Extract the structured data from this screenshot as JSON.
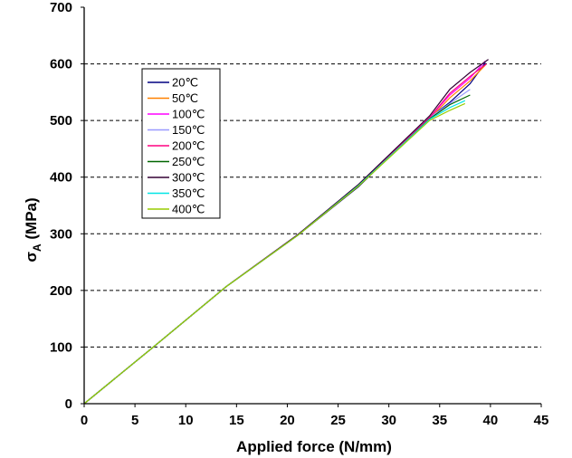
{
  "chart_data": {
    "type": "line",
    "xlabel": "Applied force (N/mm)",
    "ylabel_main": "σ",
    "ylabel_sub": "A",
    "ylabel_tail": " (MPa)",
    "xlim": [
      0,
      45
    ],
    "ylim": [
      0,
      700
    ],
    "xticks": [
      "0",
      "5",
      "10",
      "15",
      "20",
      "25",
      "30",
      "35",
      "40",
      "45"
    ],
    "yticks": [
      "0",
      "100",
      "200",
      "300",
      "400",
      "500",
      "600",
      "700"
    ],
    "grid": "horizontal dashed",
    "legend_position": "upper-left",
    "series": [
      {
        "name": "20℃",
        "color": "#000080",
        "x": [
          0,
          7,
          14,
          21,
          27,
          34,
          36,
          38,
          39.5
        ],
        "y": [
          0,
          103,
          207,
          297,
          383,
          505,
          532,
          565,
          602
        ]
      },
      {
        "name": "50℃",
        "color": "#ff8000",
        "x": [
          0,
          7,
          14,
          21,
          27,
          34,
          36,
          38,
          39.5
        ],
        "y": [
          0,
          103,
          207,
          298,
          385,
          503,
          540,
          570,
          598
        ]
      },
      {
        "name": "100℃",
        "color": "#ff00ff",
        "x": [
          0,
          7,
          14,
          21,
          27,
          34,
          36,
          38,
          39.5
        ],
        "y": [
          0,
          103,
          207,
          298,
          386,
          505,
          545,
          575,
          605
        ]
      },
      {
        "name": "150℃",
        "color": "#9999ff",
        "x": [
          0,
          7,
          14,
          21,
          27,
          34,
          36,
          38
        ],
        "y": [
          0,
          103,
          207,
          298,
          386,
          505,
          530,
          555
        ]
      },
      {
        "name": "200℃",
        "color": "#ff0080",
        "x": [
          0,
          7,
          14,
          21,
          27,
          34,
          36,
          38,
          39.6
        ],
        "y": [
          0,
          103,
          207,
          297,
          385,
          505,
          548,
          578,
          600
        ]
      },
      {
        "name": "250℃",
        "color": "#006600",
        "x": [
          0,
          7,
          14,
          21,
          27,
          34,
          36,
          38
        ],
        "y": [
          0,
          103,
          207,
          297,
          384,
          503,
          528,
          545
        ]
      },
      {
        "name": "300℃",
        "color": "#330033",
        "x": [
          0,
          7,
          14,
          21,
          27,
          34,
          36,
          38,
          39.8
        ],
        "y": [
          0,
          103,
          207,
          298,
          387,
          508,
          555,
          585,
          608
        ]
      },
      {
        "name": "350℃",
        "color": "#00e5e5",
        "x": [
          0,
          7,
          14,
          21,
          27,
          34,
          36,
          37.5
        ],
        "y": [
          0,
          103,
          207,
          297,
          385,
          502,
          523,
          535
        ]
      },
      {
        "name": "400℃",
        "color": "#99cc00",
        "x": [
          0,
          7,
          14,
          21,
          27,
          34,
          36,
          37.5
        ],
        "y": [
          0,
          103,
          207,
          297,
          384,
          500,
          518,
          530
        ]
      }
    ]
  }
}
